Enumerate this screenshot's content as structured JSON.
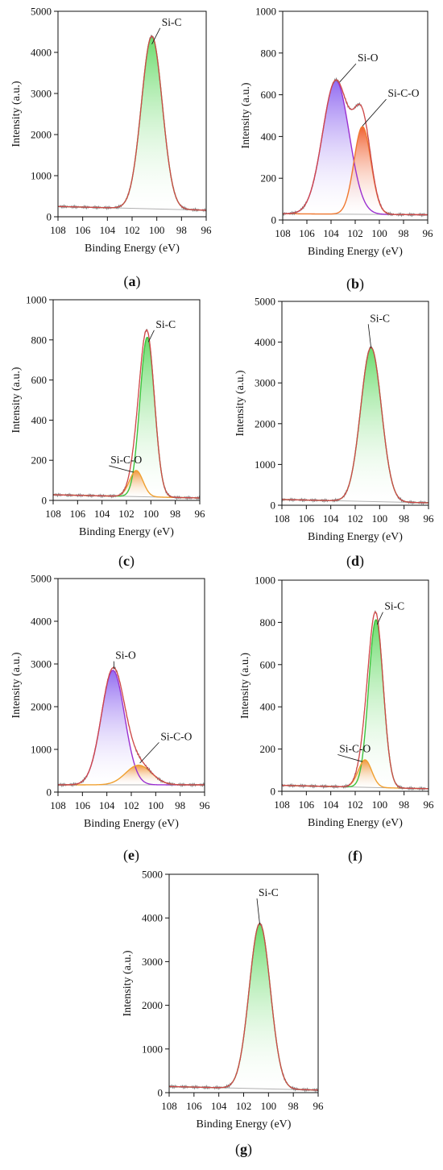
{
  "chart_data": [
    {
      "panel": "(a)",
      "type": "line",
      "xlabel": "Binding Energy (eV)",
      "ylabel": "Intensity (a.u.)",
      "xlim": [
        108,
        96
      ],
      "ylim": [
        0,
        5000
      ],
      "xticks": [
        108,
        106,
        104,
        102,
        100,
        98,
        96
      ],
      "yticks": [
        0,
        1000,
        2000,
        3000,
        4000,
        5000
      ],
      "baseline": {
        "x": [
          108,
          96
        ],
        "y": [
          250,
          160
        ]
      },
      "peaks": [
        {
          "name": "Si-C",
          "center": 100.4,
          "height": 4200,
          "width": 0.85,
          "color": "#3cc23c",
          "fill": "#62d962"
        }
      ],
      "annotations": [
        {
          "text": "Si-C",
          "x": 100.4,
          "y": 4200,
          "tx": 99.6,
          "ty": 4650
        }
      ]
    },
    {
      "panel": "(b)",
      "type": "line",
      "xlabel": "Binding Energy (eV)",
      "ylabel": "Intensity (a.u.)",
      "xlim": [
        108,
        96
      ],
      "ylim": [
        0,
        1000
      ],
      "xticks": [
        108,
        106,
        104,
        102,
        100,
        98,
        96
      ],
      "yticks": [
        0,
        200,
        400,
        600,
        800,
        1000
      ],
      "baseline": {
        "x": [
          108,
          96
        ],
        "y": [
          30,
          25
        ]
      },
      "peaks": [
        {
          "name": "Si-O",
          "center": 103.6,
          "height": 640,
          "width": 1.1,
          "color": "#9b30d0",
          "fill": "#8c64f0"
        },
        {
          "name": "Si-C-O",
          "center": 101.4,
          "height": 420,
          "width": 0.7,
          "color": "#f07830",
          "fill": "#f05a28"
        }
      ],
      "annotations": [
        {
          "text": "Si-O",
          "x": 103.3,
          "y": 660,
          "tx": 101.8,
          "ty": 760
        },
        {
          "text": "Si-C-O",
          "x": 101.4,
          "y": 450,
          "tx": 99.3,
          "ty": 590
        }
      ]
    },
    {
      "panel": "(c)",
      "type": "line",
      "xlabel": "Binding Energy (eV)",
      "ylabel": "Intensity (a.u.)",
      "xlim": [
        108,
        96
      ],
      "ylim": [
        0,
        1000
      ],
      "xticks": [
        108,
        106,
        104,
        102,
        100,
        98,
        96
      ],
      "yticks": [
        0,
        200,
        400,
        600,
        800,
        1000
      ],
      "baseline": {
        "x": [
          108,
          96
        ],
        "y": [
          28,
          12
        ]
      },
      "peaks": [
        {
          "name": "Si-C",
          "center": 100.3,
          "height": 795,
          "width": 0.6,
          "color": "#3cc23c",
          "fill": "#62d962"
        },
        {
          "name": "Si-C-O",
          "center": 101.2,
          "height": 130,
          "width": 0.55,
          "color": "#f0a030",
          "fill": "#f09030"
        }
      ],
      "annotations": [
        {
          "text": "Si-C",
          "x": 100.2,
          "y": 790,
          "tx": 99.6,
          "ty": 860
        },
        {
          "text": "Si-C-O",
          "x": 101.4,
          "y": 140,
          "tx": 103.3,
          "ty": 185
        }
      ]
    },
    {
      "panel": "(d)",
      "type": "line",
      "xlabel": "Binding Energy (eV)",
      "ylabel": "Intensity (a.u.)",
      "xlim": [
        108,
        96
      ],
      "ylim": [
        0,
        5000
      ],
      "xticks": [
        108,
        106,
        104,
        102,
        100,
        98,
        96
      ],
      "yticks": [
        0,
        1000,
        2000,
        3000,
        4000,
        5000
      ],
      "baseline": {
        "x": [
          108,
          96
        ],
        "y": [
          140,
          60
        ]
      },
      "peaks": [
        {
          "name": "Si-C",
          "center": 100.7,
          "height": 3780,
          "width": 0.85,
          "color": "#3cc23c",
          "fill": "#62d962"
        }
      ],
      "annotations": [
        {
          "text": "Si-C",
          "x": 100.7,
          "y": 3850,
          "tx": 100.8,
          "ty": 4500
        }
      ]
    },
    {
      "panel": "(e)",
      "type": "line",
      "xlabel": "Binding Energy (eV)",
      "ylabel": "Intensity (a.u.)",
      "xlim": [
        108,
        96
      ],
      "ylim": [
        0,
        5000
      ],
      "xticks": [
        108,
        106,
        104,
        102,
        100,
        98,
        96
      ],
      "yticks": [
        0,
        1000,
        2000,
        3000,
        4000,
        5000
      ],
      "baseline": {
        "x": [
          108,
          96
        ],
        "y": [
          170,
          170
        ]
      },
      "peaks": [
        {
          "name": "Si-O",
          "center": 103.5,
          "height": 2680,
          "width": 0.95,
          "color": "#9b30d0",
          "fill": "#8c64f0"
        },
        {
          "name": "Si-C-O",
          "center": 101.4,
          "height": 460,
          "width": 1.05,
          "color": "#f0a030",
          "fill": "#f09030"
        }
      ],
      "annotations": [
        {
          "text": "Si-O",
          "x": 103.4,
          "y": 2880,
          "tx": 103.3,
          "ty": 3120
        },
        {
          "text": "Si-C-O",
          "x": 101.3,
          "y": 680,
          "tx": 99.6,
          "ty": 1220
        }
      ]
    },
    {
      "panel": "(f)",
      "type": "line",
      "xlabel": "Binding Energy (eV)",
      "ylabel": "Intensity (a.u.)",
      "xlim": [
        108,
        96
      ],
      "ylim": [
        0,
        1000
      ],
      "xticks": [
        108,
        106,
        104,
        102,
        100,
        98,
        96
      ],
      "yticks": [
        0,
        200,
        400,
        600,
        800,
        1000
      ],
      "baseline": {
        "x": [
          108,
          96
        ],
        "y": [
          28,
          12
        ]
      },
      "peaks": [
        {
          "name": "Si-C",
          "center": 100.3,
          "height": 795,
          "width": 0.6,
          "color": "#3cc23c",
          "fill": "#62d962"
        },
        {
          "name": "Si-C-O",
          "center": 101.2,
          "height": 130,
          "width": 0.55,
          "color": "#f0a030",
          "fill": "#f09030"
        }
      ],
      "annotations": [
        {
          "text": "Si-C",
          "x": 100.2,
          "y": 790,
          "tx": 99.6,
          "ty": 860
        },
        {
          "text": "Si-C-O",
          "x": 101.4,
          "y": 140,
          "tx": 103.3,
          "ty": 185
        }
      ]
    },
    {
      "panel": "(g)",
      "type": "line",
      "xlabel": "Binding Energy (eV)",
      "ylabel": "Intensity (a.u.)",
      "xlim": [
        108,
        96
      ],
      "ylim": [
        0,
        5000
      ],
      "xticks": [
        108,
        106,
        104,
        102,
        100,
        98,
        96
      ],
      "yticks": [
        0,
        1000,
        2000,
        3000,
        4000,
        5000
      ],
      "baseline": {
        "x": [
          108,
          96
        ],
        "y": [
          140,
          60
        ]
      },
      "peaks": [
        {
          "name": "Si-C",
          "center": 100.7,
          "height": 3780,
          "width": 0.85,
          "color": "#3cc23c",
          "fill": "#62d962"
        }
      ],
      "annotations": [
        {
          "text": "Si-C",
          "x": 100.7,
          "y": 3850,
          "tx": 100.8,
          "ty": 4500
        }
      ]
    }
  ]
}
